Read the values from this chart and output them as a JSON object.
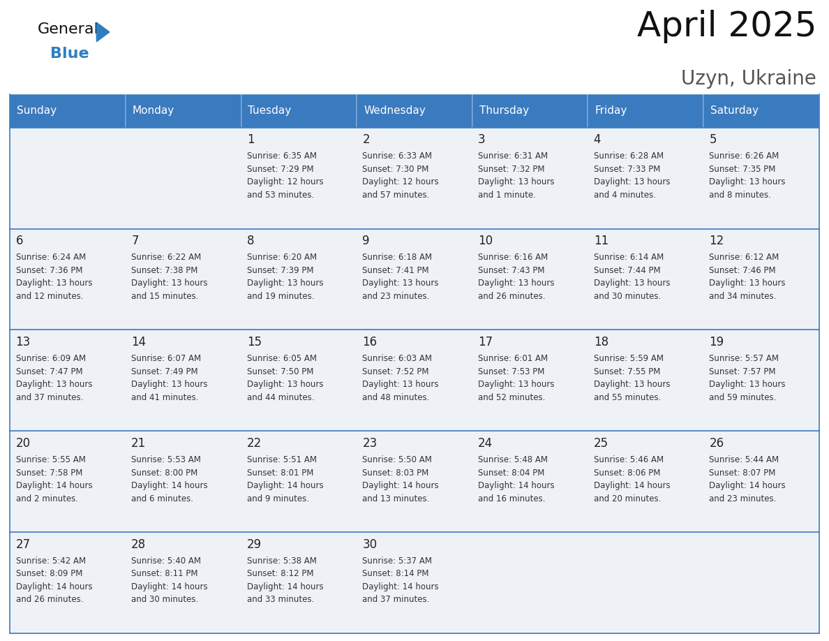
{
  "title": "April 2025",
  "subtitle": "Uzyn, Ukraine",
  "header_color": "#3a7abf",
  "header_text_color": "#ffffff",
  "cell_bg_color": "#eef2f7",
  "border_color": "#3a7abf",
  "border_color_light": "#aabdd4",
  "text_color": "#222222",
  "info_text_color": "#333333",
  "days_of_week": [
    "Sunday",
    "Monday",
    "Tuesday",
    "Wednesday",
    "Thursday",
    "Friday",
    "Saturday"
  ],
  "weeks": [
    [
      {
        "day": "",
        "info": ""
      },
      {
        "day": "",
        "info": ""
      },
      {
        "day": "1",
        "info": "Sunrise: 6:35 AM\nSunset: 7:29 PM\nDaylight: 12 hours\nand 53 minutes."
      },
      {
        "day": "2",
        "info": "Sunrise: 6:33 AM\nSunset: 7:30 PM\nDaylight: 12 hours\nand 57 minutes."
      },
      {
        "day": "3",
        "info": "Sunrise: 6:31 AM\nSunset: 7:32 PM\nDaylight: 13 hours\nand 1 minute."
      },
      {
        "day": "4",
        "info": "Sunrise: 6:28 AM\nSunset: 7:33 PM\nDaylight: 13 hours\nand 4 minutes."
      },
      {
        "day": "5",
        "info": "Sunrise: 6:26 AM\nSunset: 7:35 PM\nDaylight: 13 hours\nand 8 minutes."
      }
    ],
    [
      {
        "day": "6",
        "info": "Sunrise: 6:24 AM\nSunset: 7:36 PM\nDaylight: 13 hours\nand 12 minutes."
      },
      {
        "day": "7",
        "info": "Sunrise: 6:22 AM\nSunset: 7:38 PM\nDaylight: 13 hours\nand 15 minutes."
      },
      {
        "day": "8",
        "info": "Sunrise: 6:20 AM\nSunset: 7:39 PM\nDaylight: 13 hours\nand 19 minutes."
      },
      {
        "day": "9",
        "info": "Sunrise: 6:18 AM\nSunset: 7:41 PM\nDaylight: 13 hours\nand 23 minutes."
      },
      {
        "day": "10",
        "info": "Sunrise: 6:16 AM\nSunset: 7:43 PM\nDaylight: 13 hours\nand 26 minutes."
      },
      {
        "day": "11",
        "info": "Sunrise: 6:14 AM\nSunset: 7:44 PM\nDaylight: 13 hours\nand 30 minutes."
      },
      {
        "day": "12",
        "info": "Sunrise: 6:12 AM\nSunset: 7:46 PM\nDaylight: 13 hours\nand 34 minutes."
      }
    ],
    [
      {
        "day": "13",
        "info": "Sunrise: 6:09 AM\nSunset: 7:47 PM\nDaylight: 13 hours\nand 37 minutes."
      },
      {
        "day": "14",
        "info": "Sunrise: 6:07 AM\nSunset: 7:49 PM\nDaylight: 13 hours\nand 41 minutes."
      },
      {
        "day": "15",
        "info": "Sunrise: 6:05 AM\nSunset: 7:50 PM\nDaylight: 13 hours\nand 44 minutes."
      },
      {
        "day": "16",
        "info": "Sunrise: 6:03 AM\nSunset: 7:52 PM\nDaylight: 13 hours\nand 48 minutes."
      },
      {
        "day": "17",
        "info": "Sunrise: 6:01 AM\nSunset: 7:53 PM\nDaylight: 13 hours\nand 52 minutes."
      },
      {
        "day": "18",
        "info": "Sunrise: 5:59 AM\nSunset: 7:55 PM\nDaylight: 13 hours\nand 55 minutes."
      },
      {
        "day": "19",
        "info": "Sunrise: 5:57 AM\nSunset: 7:57 PM\nDaylight: 13 hours\nand 59 minutes."
      }
    ],
    [
      {
        "day": "20",
        "info": "Sunrise: 5:55 AM\nSunset: 7:58 PM\nDaylight: 14 hours\nand 2 minutes."
      },
      {
        "day": "21",
        "info": "Sunrise: 5:53 AM\nSunset: 8:00 PM\nDaylight: 14 hours\nand 6 minutes."
      },
      {
        "day": "22",
        "info": "Sunrise: 5:51 AM\nSunset: 8:01 PM\nDaylight: 14 hours\nand 9 minutes."
      },
      {
        "day": "23",
        "info": "Sunrise: 5:50 AM\nSunset: 8:03 PM\nDaylight: 14 hours\nand 13 minutes."
      },
      {
        "day": "24",
        "info": "Sunrise: 5:48 AM\nSunset: 8:04 PM\nDaylight: 14 hours\nand 16 minutes."
      },
      {
        "day": "25",
        "info": "Sunrise: 5:46 AM\nSunset: 8:06 PM\nDaylight: 14 hours\nand 20 minutes."
      },
      {
        "day": "26",
        "info": "Sunrise: 5:44 AM\nSunset: 8:07 PM\nDaylight: 14 hours\nand 23 minutes."
      }
    ],
    [
      {
        "day": "27",
        "info": "Sunrise: 5:42 AM\nSunset: 8:09 PM\nDaylight: 14 hours\nand 26 minutes."
      },
      {
        "day": "28",
        "info": "Sunrise: 5:40 AM\nSunset: 8:11 PM\nDaylight: 14 hours\nand 30 minutes."
      },
      {
        "day": "29",
        "info": "Sunrise: 5:38 AM\nSunset: 8:12 PM\nDaylight: 14 hours\nand 33 minutes."
      },
      {
        "day": "30",
        "info": "Sunrise: 5:37 AM\nSunset: 8:14 PM\nDaylight: 14 hours\nand 37 minutes."
      },
      {
        "day": "",
        "info": ""
      },
      {
        "day": "",
        "info": ""
      },
      {
        "day": "",
        "info": ""
      }
    ]
  ],
  "logo_general_color": "#111111",
  "logo_blue_color": "#2e7fc1",
  "logo_triangle_color": "#2e7fc1",
  "title_fontsize": 36,
  "subtitle_fontsize": 20,
  "header_fontsize": 11,
  "day_number_fontsize": 12,
  "info_fontsize": 8.5
}
